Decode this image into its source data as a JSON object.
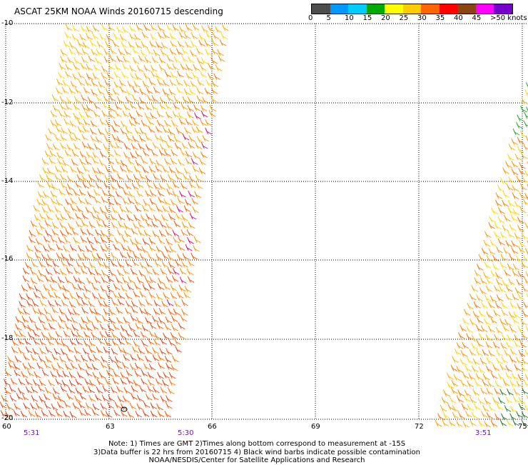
{
  "title": "ASCAT 25KM NOAA Winds 20160715 descending",
  "legend": {
    "colors": [
      "#4d4d4d",
      "#0099ff",
      "#00ccff",
      "#00aa00",
      "#ffff00",
      "#ffcc00",
      "#ff6600",
      "#ff0000",
      "#8b4513",
      "#ff00ff",
      "#7700cc"
    ],
    "labels": [
      "0",
      "5",
      "10",
      "15",
      "20",
      "25",
      "30",
      "35",
      "40",
      "45",
      ">50 knots"
    ]
  },
  "axes": {
    "y_labels": [
      "-10",
      "-12",
      "-14",
      "-16",
      "-18",
      "-20"
    ],
    "x_labels": [
      "60",
      "63",
      "66",
      "69",
      "72",
      "75"
    ]
  },
  "pass_times": [
    "5:31",
    "5:30",
    "3:51"
  ],
  "notes": [
    "Note: 1) Times are GMT 2)Times along bottom correspond to measurement at -15S",
    "3)Data buffer is 22 hrs from 20160715 4) Black wind barbs indicate possible contamination",
    "NOAA/NESDIS/Center for Satellite Applications and Research"
  ]
}
